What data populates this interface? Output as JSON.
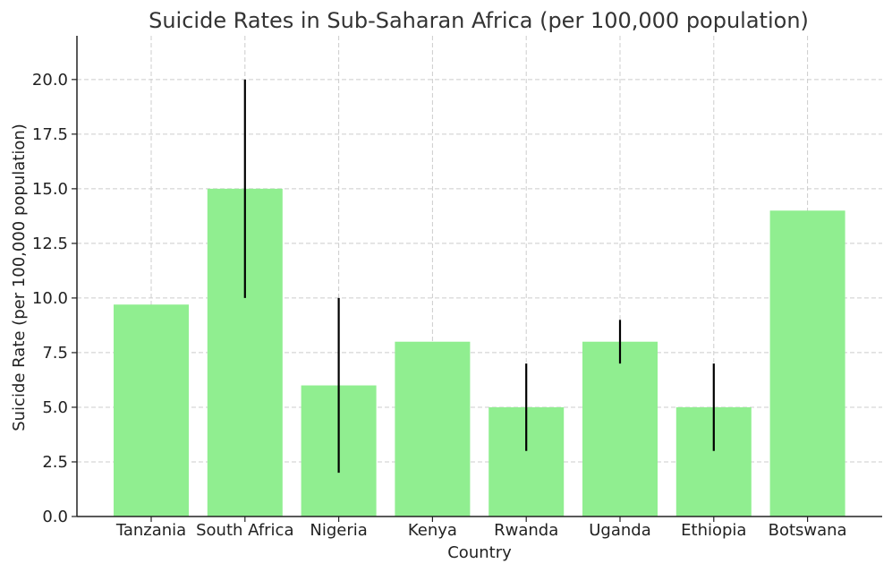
{
  "chart_data": {
    "type": "bar",
    "title": "Suicide Rates in Sub-Saharan Africa (per 100,000 population)",
    "xlabel": "Country",
    "ylabel": "Suicide Rate (per 100,000 population)",
    "categories": [
      "Tanzania",
      "South Africa",
      "Nigeria",
      "Kenya",
      "Rwanda",
      "Uganda",
      "Ethiopia",
      "Botswana"
    ],
    "values": [
      9.7,
      15.0,
      6.0,
      8.0,
      5.0,
      8.0,
      5.0,
      14.0
    ],
    "error_ranges": [
      null,
      [
        10.0,
        20.0
      ],
      [
        2.0,
        10.0
      ],
      null,
      [
        3.0,
        7.0
      ],
      [
        7.0,
        9.0
      ],
      [
        3.0,
        7.0
      ],
      null
    ],
    "ylim": [
      0,
      22
    ],
    "yticks": [
      "0.0",
      "2.5",
      "5.0",
      "7.5",
      "10.0",
      "12.5",
      "15.0",
      "17.5",
      "20.0"
    ],
    "grid": true,
    "colors": {
      "bar": "#90EE90",
      "error_bar": "#000000",
      "grid": "#cccccc",
      "axis": "#222222"
    }
  }
}
